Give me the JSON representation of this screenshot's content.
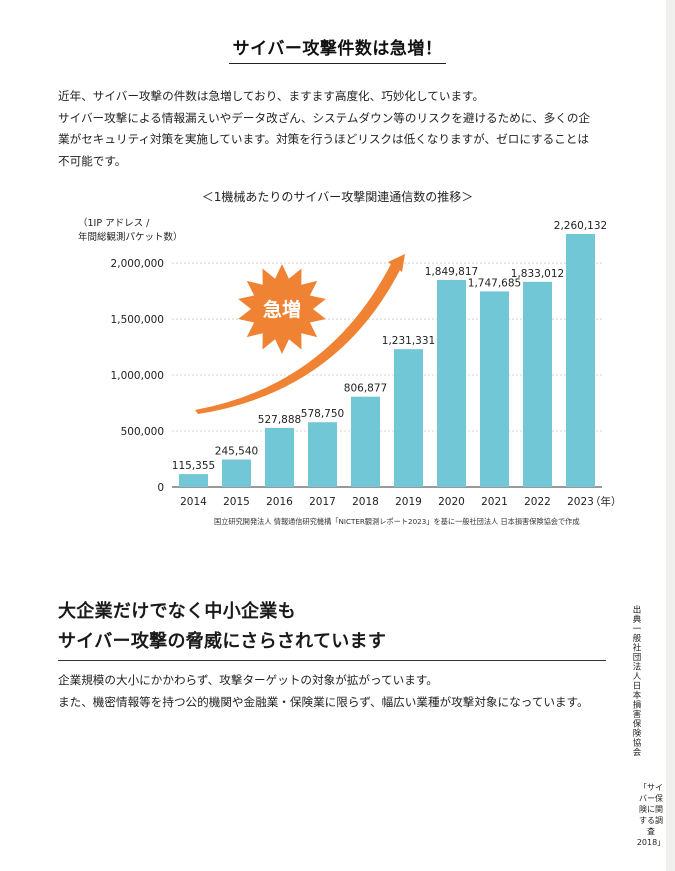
{
  "page": {
    "heading": "サイバー攻撃件数は急増！",
    "intro": [
      "近年、サイバー攻撃の件数は急増しており、ますます高度化、巧妙化しています。",
      "サイバー攻撃による情報漏えいやデータ改ざん、システムダウン等のリスクを避けるために、多くの企",
      "業がセキュリティ対策を実施しています。対策を行うほどリスクは低くなりますが、ゼロにすることは",
      "不可能です。"
    ],
    "section2_title": [
      "大企業だけでなく中小企業も",
      "サイバー攻撃の脅威にさらされています"
    ],
    "section2_body": [
      "企業規模の大小にかかわらず、攻撃ターゲットの対象が拡がっています。",
      "また、機密情報等を持つ公的機関や金融業・保険業に限らず、幅広い業種が攻撃対象になっています。"
    ],
    "side_citation": "出典一般社団法人日本損害保険協会",
    "side_citation2": "「サイバー保険に関する調査2018」"
  },
  "chart_data": {
    "type": "bar",
    "title": "＜1機械あたりのサイバー攻撃関連通信数の推移＞",
    "ylabel": [
      "（1IP アドレス /",
      "年間総観測パケット数）"
    ],
    "x_unit": "（年）",
    "categories": [
      "2014",
      "2015",
      "2016",
      "2017",
      "2018",
      "2019",
      "2020",
      "2021",
      "2022",
      "2023"
    ],
    "values": [
      115355,
      245540,
      527888,
      578750,
      806877,
      1231331,
      1849817,
      1747685,
      1833012,
      2260132
    ],
    "value_labels": [
      "115,355",
      "245,540",
      "527,888",
      "578,750",
      "806,877",
      "1,231,331",
      "1,849,817",
      "1,747,685",
      "1,833,012",
      "2,260,132"
    ],
    "ylim": [
      0,
      2260132
    ],
    "yticks": [
      0,
      500000,
      1000000,
      1500000,
      2000000
    ],
    "ytick_labels": [
      "0",
      "500,000",
      "1,000,000",
      "1,500,000",
      "2,000,000"
    ],
    "grid": true,
    "badge_text": "急増",
    "source": "国立研究開発法人 情報通信研究機構「NICTER観測レポート2023」を基に一般社団法人 日本損害保険協会で作成",
    "colors": {
      "bar": "#72c7d6",
      "arrow": "#f08234",
      "badge": "#f08234"
    }
  }
}
